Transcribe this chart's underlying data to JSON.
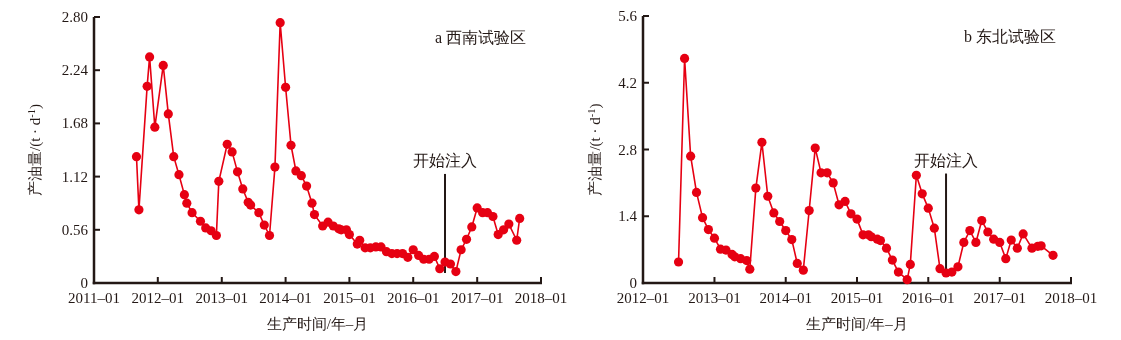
{
  "chart_data": [
    {
      "type": "line",
      "title": "a 西南试验区",
      "xlabel": "生产时间/年–月",
      "ylabel": "产油量/(t · d$^{-1}$)",
      "marker": "circle",
      "xlim": [
        "2011-01",
        "2018-01"
      ],
      "ylim": [
        0,
        2.8
      ],
      "xticks": [
        {
          "value": "2011-01",
          "label": "2011–01"
        },
        {
          "value": "2012-01",
          "label": "2012–01"
        },
        {
          "value": "2013-01",
          "label": "2013–01"
        },
        {
          "value": "2014-01",
          "label": "2014–01"
        },
        {
          "value": "2015-01",
          "label": "2015–01"
        },
        {
          "value": "2016-01",
          "label": "2016–01"
        },
        {
          "value": "2017-01",
          "label": "2017–01"
        },
        {
          "value": "2018-01",
          "label": "2018–01"
        }
      ],
      "yticks": [
        0,
        0.56,
        1.12,
        1.68,
        2.24,
        {
          "value": 2.8,
          "label": "2.80"
        }
      ],
      "ref_lines": [
        {
          "axis": "x",
          "value": "2016-07",
          "label": "开始注入"
        }
      ],
      "x": [
        "2011-09-01",
        "2011-09-15",
        "2011-11-01",
        "2011-11-15",
        "2011-12-15",
        "2012-02-01",
        "2012-03-01",
        "2012-04-01",
        "2012-05-01",
        "2012-06-01",
        "2012-06-15",
        "2012-07-15",
        "2012-09-01",
        "2012-10-01",
        "2012-11-01",
        "2012-12-01",
        "2012-12-15",
        "2013-02-01",
        "2013-03-01",
        "2013-04-01",
        "2013-05-01",
        "2013-06-01",
        "2013-06-15",
        "2013-08-01",
        "2013-09-01",
        "2013-10-01",
        "2013-11-01",
        "2013-12-01",
        "2014-01-01",
        "2014-02-01",
        "2014-03-01",
        "2014-04-01",
        "2014-05-01",
        "2014-06-01",
        "2014-06-15",
        "2014-08-01",
        "2014-09-01",
        "2014-10-01",
        "2014-11-01",
        "2014-11-15",
        "2014-12-15",
        "2015-01-01",
        "2015-02-15",
        "2015-03-01",
        "2015-04-01",
        "2015-05-01",
        "2015-06-01",
        "2015-07-01",
        "2015-08-01",
        "2015-09-01",
        "2015-10-01",
        "2015-11-01",
        "2015-12-01",
        "2016-01-01",
        "2016-02-01",
        "2016-03-01",
        "2016-04-01",
        "2016-05-01",
        "2016-06-01",
        "2016-07-01",
        "2016-08-01",
        "2016-09-01",
        "2016-10-01",
        "2016-11-01",
        "2016-12-01",
        "2017-01-01",
        "2017-02-01",
        "2017-03-01",
        "2017-04-01",
        "2017-05-01",
        "2017-06-01",
        "2017-07-01",
        "2017-08-15",
        "2017-09-01"
      ],
      "series": [
        {
          "color": "#e60012",
          "values": [
            1.33,
            0.77,
            2.07,
            2.38,
            1.64,
            2.29,
            1.78,
            1.33,
            1.14,
            0.93,
            0.84,
            0.74,
            0.65,
            0.58,
            0.55,
            0.5,
            1.07,
            1.46,
            1.38,
            1.17,
            0.99,
            0.85,
            0.82,
            0.74,
            0.61,
            0.5,
            1.22,
            2.74,
            2.06,
            1.45,
            1.18,
            1.13,
            1.02,
            0.84,
            0.72,
            0.6,
            0.64,
            0.6,
            0.57,
            0.56,
            0.56,
            0.51,
            0.41,
            0.45,
            0.37,
            0.37,
            0.38,
            0.38,
            0.33,
            0.31,
            0.31,
            0.31,
            0.27,
            0.35,
            0.29,
            0.25,
            0.25,
            0.28,
            0.15,
            0.22,
            0.2,
            0.12,
            0.35,
            0.46,
            0.59,
            0.79,
            0.74,
            0.74,
            0.7,
            0.51,
            0.56,
            0.62,
            0.45,
            0.68
          ]
        }
      ]
    },
    {
      "type": "line",
      "title": "b 东北试验区",
      "xlabel": "生产时间/年–月",
      "ylabel": "产油量/(t · d$^{-1}$)",
      "marker": "circle",
      "xlim": [
        "2012-01",
        "2018-01"
      ],
      "ylim": [
        0,
        5.6
      ],
      "xticks": [
        {
          "value": "2012-01",
          "label": "2012–01"
        },
        {
          "value": "2013-01",
          "label": "2013–01"
        },
        {
          "value": "2014-01",
          "label": "2014–01"
        },
        {
          "value": "2015-01",
          "label": "2015–01"
        },
        {
          "value": "2016-01",
          "label": "2016–01"
        },
        {
          "value": "2017-01",
          "label": "2017–01"
        },
        {
          "value": "2018-01",
          "label": "2018–01"
        }
      ],
      "yticks": [
        0,
        1.4,
        2.8,
        4.2,
        5.6
      ],
      "ref_lines": [
        {
          "axis": "x",
          "value": "2016-04",
          "label": "开始注入"
        }
      ],
      "x": [
        "2012-07-01",
        "2012-08-01",
        "2012-09-01",
        "2012-10-01",
        "2012-11-01",
        "2012-12-01",
        "2013-01-01",
        "2013-02-01",
        "2013-03-01",
        "2013-04-01",
        "2013-04-15",
        "2013-05-15",
        "2013-06-15",
        "2013-07-01",
        "2013-08-01",
        "2013-09-01",
        "2013-10-01",
        "2013-11-01",
        "2013-12-01",
        "2014-01-01",
        "2014-02-01",
        "2014-03-01",
        "2014-04-01",
        "2014-05-01",
        "2014-06-01",
        "2014-07-01",
        "2014-08-01",
        "2014-09-01",
        "2014-10-01",
        "2014-11-01",
        "2014-12-01",
        "2015-01-01",
        "2015-02-01",
        "2015-03-01",
        "2015-03-15",
        "2015-04-15",
        "2015-05-01",
        "2015-06-01",
        "2015-07-01",
        "2015-08-01",
        "2015-09-15",
        "2015-10-01",
        "2015-11-01",
        "2015-12-01",
        "2016-01-01",
        "2016-02-01",
        "2016-03-01",
        "2016-04-01",
        "2016-05-01",
        "2016-06-01",
        "2016-07-01",
        "2016-08-01",
        "2016-09-01",
        "2016-10-01",
        "2016-11-01",
        "2016-12-01",
        "2017-01-01",
        "2017-02-01",
        "2017-03-01",
        "2017-04-01",
        "2017-05-01",
        "2017-06-15",
        "2017-07-15",
        "2017-08-01",
        "2017-10-01"
      ],
      "series": [
        {
          "color": "#e60012",
          "values": [
            0.44,
            4.71,
            2.66,
            1.9,
            1.37,
            1.12,
            0.94,
            0.71,
            0.69,
            0.6,
            0.55,
            0.51,
            0.47,
            0.29,
            1.99,
            2.95,
            1.82,
            1.47,
            1.29,
            1.1,
            0.91,
            0.41,
            0.27,
            1.52,
            2.83,
            2.31,
            2.31,
            2.1,
            1.64,
            1.71,
            1.45,
            1.34,
            1.01,
            1.01,
            0.97,
            0.92,
            0.89,
            0.73,
            0.48,
            0.23,
            0.07,
            0.39,
            2.26,
            1.87,
            1.57,
            1.15,
            0.3,
            0.21,
            0.23,
            0.34,
            0.85,
            1.1,
            0.85,
            1.31,
            1.07,
            0.92,
            0.85,
            0.51,
            0.9,
            0.73,
            1.03,
            0.73,
            0.77,
            0.78,
            0.58
          ]
        }
      ]
    }
  ]
}
